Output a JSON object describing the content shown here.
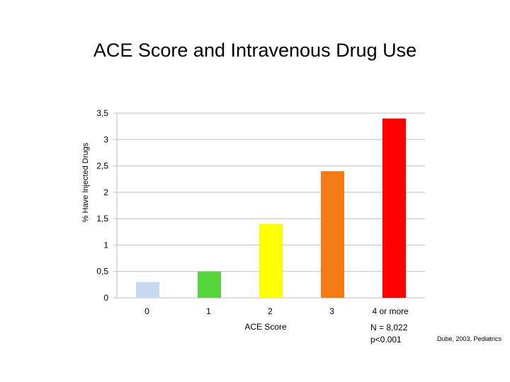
{
  "chart_data": {
    "type": "bar",
    "title": "ACE Score and Intravenous Drug Use",
    "xlabel": "ACE Score",
    "ylabel": "% Have Injected Drugs",
    "categories": [
      "0",
      "1",
      "2",
      "3",
      "4 or more"
    ],
    "values": [
      0.3,
      0.5,
      1.4,
      2.4,
      3.4
    ],
    "colors": [
      "#c5d9f1",
      "#54d63c",
      "#ffff00",
      "#f57c14",
      "#ff0000"
    ],
    "ylim": [
      0,
      3.5
    ],
    "yticks": [
      "0",
      "0,5",
      "1",
      "1,5",
      "2",
      "2,5",
      "3",
      "3,5"
    ],
    "grid": true,
    "legend": "none"
  },
  "annotations": {
    "sample_size": "N = 8,022",
    "p_value": "p<0.001",
    "source": "Dube, 2003, Pediatrics"
  }
}
